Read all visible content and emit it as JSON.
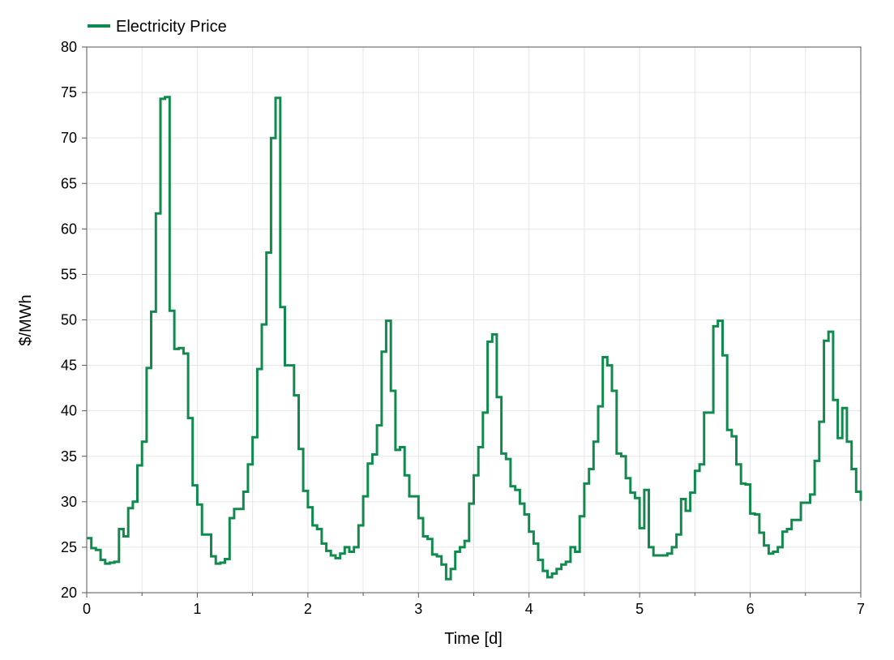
{
  "chart_data": {
    "type": "line",
    "step": true,
    "xlabel": "Time [d]",
    "ylabel": "$/MWh",
    "xlim": [
      0,
      7
    ],
    "ylim": [
      20,
      80
    ],
    "xticks": [
      0,
      1,
      2,
      3,
      4,
      5,
      6,
      7
    ],
    "yticks": [
      20,
      25,
      30,
      35,
      40,
      45,
      50,
      55,
      60,
      65,
      70,
      75,
      80
    ],
    "grid": true,
    "legend_position": "top-left",
    "series": [
      {
        "name": "Electricity Price",
        "color": "#118a4e",
        "x": [
          0,
          0.042,
          0.083,
          0.125,
          0.167,
          0.208,
          0.25,
          0.292,
          0.333,
          0.375,
          0.417,
          0.458,
          0.5,
          0.542,
          0.583,
          0.625,
          0.667,
          0.708,
          0.75,
          0.792,
          0.833,
          0.875,
          0.917,
          0.958,
          1.0,
          1.042,
          1.083,
          1.125,
          1.167,
          1.208,
          1.25,
          1.292,
          1.333,
          1.375,
          1.417,
          1.458,
          1.5,
          1.542,
          1.583,
          1.625,
          1.667,
          1.708,
          1.75,
          1.792,
          1.833,
          1.875,
          1.917,
          1.958,
          2.0,
          2.042,
          2.083,
          2.125,
          2.167,
          2.208,
          2.25,
          2.292,
          2.333,
          2.375,
          2.417,
          2.458,
          2.5,
          2.542,
          2.583,
          2.625,
          2.667,
          2.708,
          2.75,
          2.792,
          2.833,
          2.875,
          2.917,
          2.958,
          3.0,
          3.042,
          3.083,
          3.125,
          3.167,
          3.208,
          3.25,
          3.292,
          3.333,
          3.375,
          3.417,
          3.458,
          3.5,
          3.542,
          3.583,
          3.625,
          3.667,
          3.708,
          3.75,
          3.792,
          3.833,
          3.875,
          3.917,
          3.958,
          4.0,
          4.042,
          4.083,
          4.125,
          4.167,
          4.208,
          4.25,
          4.292,
          4.333,
          4.375,
          4.417,
          4.458,
          4.5,
          4.542,
          4.583,
          4.625,
          4.667,
          4.708,
          4.75,
          4.792,
          4.833,
          4.875,
          4.917,
          4.958,
          5.0,
          5.042,
          5.083,
          5.125,
          5.167,
          5.208,
          5.25,
          5.292,
          5.333,
          5.375,
          5.417,
          5.458,
          5.5,
          5.542,
          5.583,
          5.625,
          5.667,
          5.708,
          5.75,
          5.792,
          5.833,
          5.875,
          5.917,
          5.958,
          6.0,
          6.042,
          6.083,
          6.125,
          6.167,
          6.208,
          6.25,
          6.292,
          6.333,
          6.375,
          6.417,
          6.458,
          6.5,
          6.542,
          6.583,
          6.625,
          6.667,
          6.708,
          6.75,
          6.792,
          6.833,
          6.875,
          6.917,
          6.958,
          7.0
        ],
        "y": [
          26.0,
          24.9,
          24.7,
          23.6,
          23.2,
          23.3,
          23.4,
          27.0,
          26.2,
          29.3,
          30.0,
          34.0,
          36.6,
          44.7,
          50.9,
          61.7,
          74.3,
          74.5,
          51.0,
          46.8,
          46.9,
          46.3,
          39.2,
          31.8,
          29.7,
          26.4,
          26.4,
          24.0,
          23.2,
          23.3,
          23.7,
          28.2,
          29.2,
          29.2,
          31.1,
          34.1,
          37.1,
          44.6,
          49.5,
          57.4,
          70.0,
          74.4,
          51.4,
          45.0,
          45.0,
          41.7,
          35.8,
          31.2,
          29.4,
          27.4,
          27.0,
          25.4,
          24.6,
          24.1,
          23.8,
          24.3,
          25.0,
          24.5,
          25.0,
          27.4,
          30.6,
          34.2,
          35.2,
          38.4,
          46.5,
          49.9,
          42.2,
          35.7,
          36.0,
          32.9,
          30.6,
          30.6,
          28.2,
          26.2,
          25.9,
          24.2,
          24.0,
          23.1,
          21.5,
          22.6,
          24.5,
          25.0,
          25.7,
          29.8,
          32.9,
          36.0,
          39.8,
          47.6,
          48.4,
          41.5,
          35.3,
          34.7,
          31.7,
          31.3,
          29.8,
          28.6,
          26.7,
          25.4,
          23.6,
          22.4,
          21.7,
          22.1,
          22.6,
          23.1,
          23.4,
          25.0,
          24.5,
          28.4,
          32.0,
          33.6,
          36.6,
          40.5,
          45.9,
          45.0,
          42.2,
          35.3,
          35.0,
          32.6,
          31.0,
          30.4,
          27.1,
          31.3,
          25.0,
          24.1,
          24.1,
          24.1,
          24.3,
          25.0,
          26.4,
          30.3,
          29.0,
          31.0,
          33.4,
          34.1,
          39.8,
          39.8,
          49.3,
          49.9,
          46.1,
          37.9,
          37.2,
          34.1,
          32.0,
          31.9,
          28.7,
          28.6,
          26.6,
          25.2,
          24.3,
          24.5,
          25.0,
          26.7,
          27.0,
          28.0,
          28.0,
          29.9,
          29.9,
          30.8,
          34.5,
          38.8,
          47.7,
          48.7,
          41.2,
          37.0,
          40.3,
          36.6,
          33.6,
          31.1,
          30.1
        ]
      }
    ]
  }
}
